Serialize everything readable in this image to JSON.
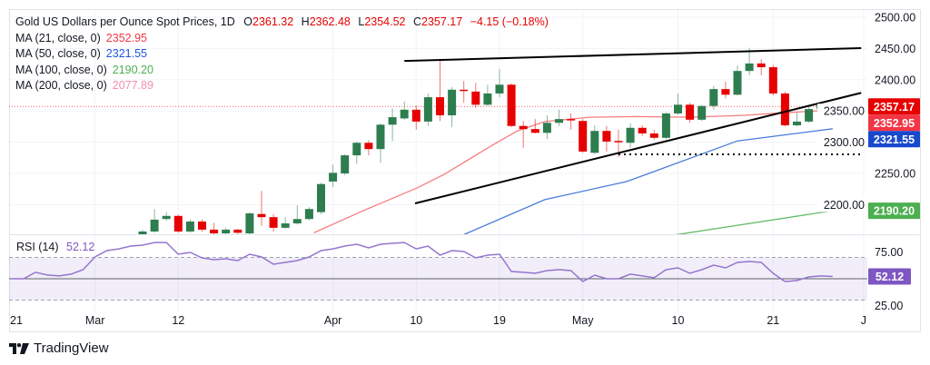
{
  "legend": {
    "symbol": "Gold US Dollars per Ounce Spot Prices, 1D",
    "open_label": "O",
    "open": "2361.32",
    "high_label": "H",
    "high": "2362.48",
    "low_label": "L",
    "low": "2354.52",
    "close_label": "C",
    "close": "2357.17",
    "change": "−4.15 (−0.18%)",
    "ma": [
      {
        "label": "MA (21, close, 0)",
        "value": "2352.95",
        "color": "#f23645"
      },
      {
        "label": "MA (50, close, 0)",
        "value": "2321.55",
        "color": "#1e53e5"
      },
      {
        "label": "MA (100, close, 0)",
        "value": "2190.20",
        "color": "#4caf50"
      },
      {
        "label": "MA (200, close, 0)",
        "value": "2077.89",
        "color": "#f48fb1"
      }
    ]
  },
  "rsi_legend": {
    "label": "RSI (14)",
    "value": "52.12",
    "color": "#7e57c2"
  },
  "branding": {
    "name": "TradingView"
  },
  "colors": {
    "up": "#2e7d4f",
    "down": "#e60000",
    "ma21_line": "#f77c80",
    "ma50_line": "#4a7bdc",
    "ma100_line": "#66bb6a",
    "rsi": "#9575cd",
    "trendline": "#000000"
  },
  "chart_data": {
    "type": "candlestick",
    "timeframe": "1D",
    "price_axis": {
      "range": [
        2150,
        2500
      ],
      "ticks": [
        "2500.00",
        "2450.00",
        "2400.00",
        "2350.00",
        "2300.00",
        "2250.00",
        "2200.00"
      ]
    },
    "x_axis": {
      "ticks": [
        {
          "label": "21",
          "bar": -11.2
        },
        {
          "label": "Mar",
          "bar": -4
        },
        {
          "label": "12",
          "bar": 3
        },
        {
          "label": "Apr",
          "bar": 16
        },
        {
          "label": "10",
          "bar": 23
        },
        {
          "label": "19",
          "bar": 30
        },
        {
          "label": "May",
          "bar": 37
        },
        {
          "label": "10",
          "bar": 45
        },
        {
          "label": "21",
          "bar": 53
        },
        {
          "label": "J",
          "bar": 60.6
        }
      ]
    },
    "candles": [
      [
        2152.6,
        2160,
        2151,
        2157
      ],
      [
        2157,
        2193,
        2155,
        2176
      ],
      [
        2177,
        2188,
        2174,
        2182
      ],
      [
        2182,
        2184,
        2155,
        2157
      ],
      [
        2157,
        2176,
        2155,
        2173
      ],
      [
        2173,
        2176,
        2157,
        2160
      ],
      [
        2160,
        2171,
        2152,
        2154
      ],
      [
        2154,
        2163,
        2152,
        2160
      ],
      [
        2160,
        2161,
        2153,
        2155
      ],
      [
        2154,
        2188,
        2152,
        2186
      ],
      [
        2185,
        2222,
        2166,
        2180
      ],
      [
        2180,
        2185,
        2157,
        2163
      ],
      [
        2163,
        2180,
        2161,
        2170
      ],
      [
        2170,
        2199,
        2168,
        2177
      ],
      [
        2177,
        2196,
        2175,
        2193
      ],
      [
        2188,
        2235,
        2185,
        2233
      ],
      [
        2237,
        2264,
        2228,
        2251
      ],
      [
        2250,
        2281,
        2247,
        2279
      ],
      [
        2279,
        2301,
        2265,
        2299
      ],
      [
        2299,
        2303,
        2279,
        2289
      ],
      [
        2289,
        2330,
        2267,
        2328
      ],
      [
        2328,
        2354,
        2302,
        2340
      ],
      [
        2338,
        2365,
        2336,
        2352
      ],
      [
        2352,
        2359,
        2320,
        2333
      ],
      [
        2333,
        2378,
        2326,
        2372
      ],
      [
        2372,
        2432,
        2334,
        2343
      ],
      [
        2343,
        2388,
        2324,
        2384
      ],
      [
        2384,
        2398,
        2363,
        2382
      ],
      [
        2381,
        2395,
        2355,
        2360
      ],
      [
        2360,
        2392,
        2358,
        2378
      ],
      [
        2378,
        2417,
        2372,
        2392
      ],
      [
        2392,
        2394,
        2324,
        2326
      ],
      [
        2326,
        2334,
        2291,
        2321
      ],
      [
        2321,
        2337,
        2314,
        2315
      ],
      [
        2315,
        2343,
        2305,
        2331
      ],
      [
        2331,
        2352,
        2326,
        2337
      ],
      [
        2337,
        2346,
        2320,
        2336
      ],
      [
        2334,
        2337,
        2283,
        2285
      ],
      [
        2283,
        2327,
        2281,
        2318
      ],
      [
        2318,
        2326,
        2285,
        2301
      ],
      [
        2302,
        2320,
        2276,
        2301
      ],
      [
        2299,
        2330,
        2291,
        2323
      ],
      [
        2323,
        2327,
        2310,
        2314
      ],
      [
        2314,
        2320,
        2304,
        2307
      ],
      [
        2307,
        2348,
        2305,
        2346
      ],
      [
        2346,
        2378,
        2344,
        2360
      ],
      [
        2360,
        2363,
        2331,
        2336
      ],
      [
        2336,
        2359,
        2334,
        2358
      ],
      [
        2358,
        2390,
        2352,
        2385
      ],
      [
        2385,
        2397,
        2370,
        2376
      ],
      [
        2376,
        2423,
        2375,
        2414
      ],
      [
        2414,
        2451,
        2407,
        2426
      ],
      [
        2426,
        2433,
        2407,
        2420
      ],
      [
        2420,
        2424,
        2375,
        2378
      ],
      [
        2378,
        2381,
        2325,
        2327
      ],
      [
        2327,
        2347,
        2325,
        2333
      ],
      [
        2333,
        2357,
        2331,
        2353
      ],
      [
        2353,
        2363,
        2340,
        2360
      ],
      [
        2361.32,
        2362.48,
        2354.52,
        2357.17
      ]
    ],
    "moving_averages": {
      "ma21": [
        [
          14.4,
          2155
        ],
        [
          18.5,
          2190
        ],
        [
          23.1,
          2227
        ],
        [
          25.4,
          2249
        ],
        [
          29.2,
          2293
        ],
        [
          31.5,
          2318
        ],
        [
          33.8,
          2333
        ],
        [
          37.6,
          2340
        ],
        [
          41.5,
          2341
        ],
        [
          46,
          2340
        ],
        [
          50.6,
          2343
        ],
        [
          53.7,
          2347
        ],
        [
          56.7,
          2350
        ],
        [
          58,
          2352.95
        ]
      ],
      "ma50": [
        [
          27,
          2152
        ],
        [
          33.8,
          2208
        ],
        [
          40.7,
          2237
        ],
        [
          43,
          2253
        ],
        [
          50,
          2302
        ],
        [
          58,
          2321.55
        ]
      ],
      "ma100": [
        [
          44.9,
          2152
        ],
        [
          58,
          2190.2
        ]
      ]
    },
    "drawings": {
      "upper_trendline": [
        [
          22,
          2430
        ],
        [
          60.4,
          2450.6
        ]
      ],
      "lower_trendline": [
        [
          22.9,
          2202
        ],
        [
          60.4,
          2379
        ]
      ],
      "support_level": {
        "price": 2280.5,
        "from_bar": 40,
        "to_bar": 60.4
      }
    },
    "last_price": 2357.17,
    "price_badges": [
      {
        "text": "2357.17",
        "price": 2357.17,
        "color": "#e60000"
      },
      {
        "text": "2352.95",
        "price": 2352.95,
        "color": "#f23645"
      },
      {
        "text": "2321.55",
        "price": 2321.55,
        "color": "#1848cc"
      },
      {
        "text": "2190.20",
        "price": 2190.2,
        "color": "#4caf50"
      }
    ],
    "rsi": {
      "period": 14,
      "axis_ticks": [
        "75.00",
        "25.00"
      ],
      "bands": [
        70,
        30
      ],
      "midline": 50,
      "start_bar": -11,
      "values": [
        50,
        50,
        56,
        53.5,
        52.6,
        54.3,
        58.5,
        70.4,
        76.4,
        78,
        80.6,
        81.5,
        84,
        84,
        73,
        74.7,
        69.6,
        67.9,
        68.7,
        67,
        73,
        70.4,
        63.6,
        65.3,
        67,
        70.4,
        76.4,
        78,
        80.6,
        82.3,
        78.9,
        82.3,
        83.2,
        84,
        78,
        80.6,
        72.1,
        76.4,
        75.5,
        69.6,
        72.1,
        73,
        56.8,
        56,
        55.1,
        57.7,
        58.5,
        57.7,
        47.4,
        53.4,
        50,
        50,
        54.3,
        52.6,
        50.9,
        58.5,
        60.2,
        55.1,
        58.5,
        62.8,
        60.2,
        65.3,
        66.2,
        65.3,
        55.1,
        47.4,
        48.3,
        51.7,
        52.6,
        52.12
      ],
      "badge": {
        "text": "52.12",
        "color": "#7e57c2"
      }
    }
  }
}
